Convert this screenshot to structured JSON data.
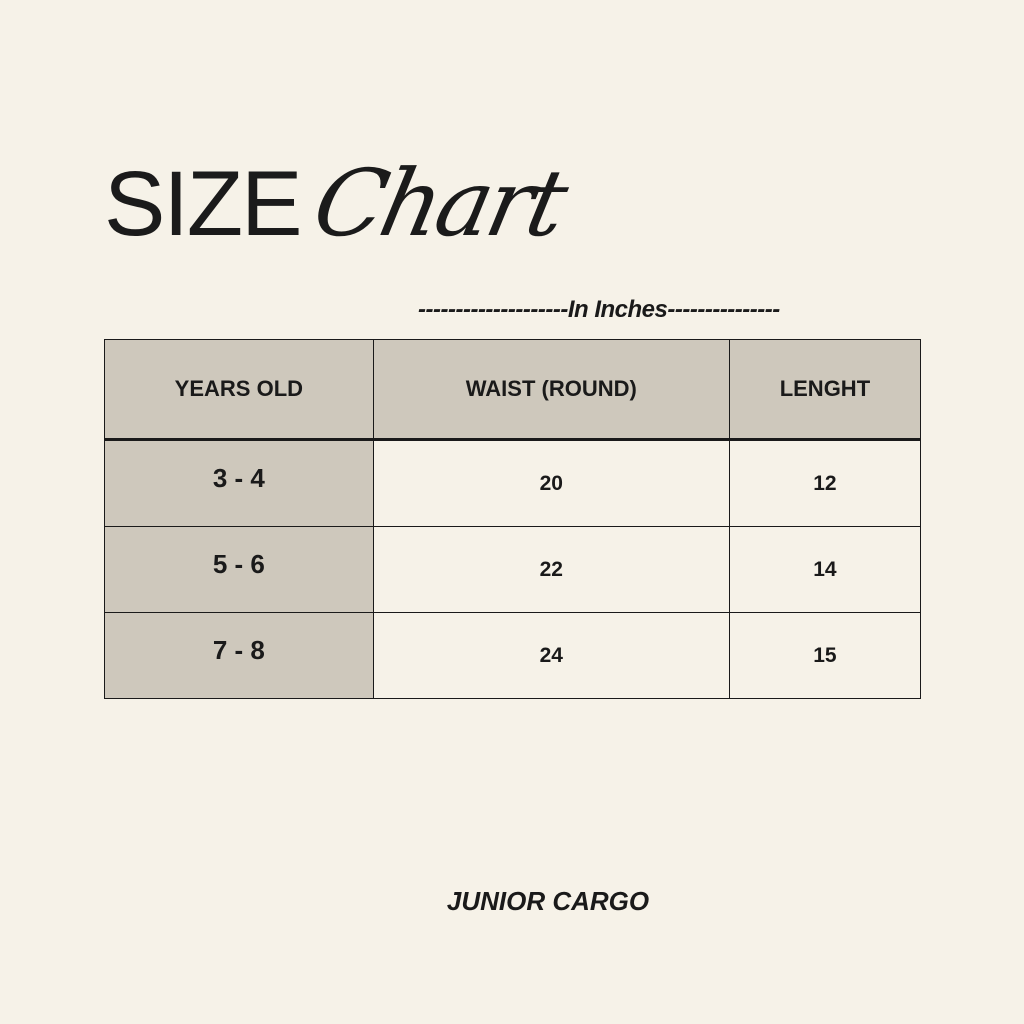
{
  "title": {
    "word1": "SIZE",
    "word2": "Chart"
  },
  "unit_note": "--------------------In Inches---------------",
  "table": {
    "headers": [
      "YEARS OLD",
      "WAIST (ROUND)",
      "LENGHT"
    ],
    "rows": [
      [
        "3 - 4",
        "20",
        "12"
      ],
      [
        "5 - 6",
        "22",
        "14"
      ],
      [
        "7 - 8",
        "24",
        "15"
      ]
    ]
  },
  "footer": "JUNIOR CARGO",
  "colors": {
    "background": "#f6f2e8",
    "header_fill": "#cec8bc",
    "text": "#1a1a1a"
  }
}
